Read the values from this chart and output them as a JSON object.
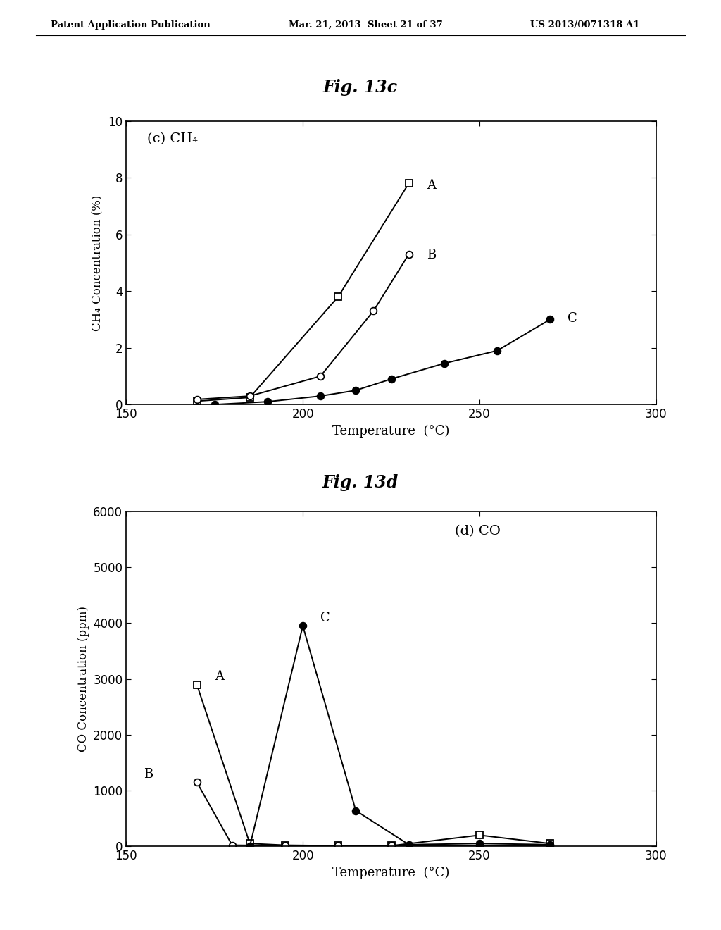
{
  "fig_title_top": "Fig. 13c",
  "fig_title_bottom": "Fig. 13d",
  "header_left": "Patent Application Publication",
  "header_center": "Mar. 21, 2013  Sheet 21 of 37",
  "header_right": "US 2013/0071318 A1",
  "chart_c": {
    "label": "(c) CH₄",
    "xlabel": "Temperature  (°C)",
    "ylabel": "CH₄ Concentration (%)",
    "xlim": [
      150,
      300
    ],
    "ylim": [
      0,
      10
    ],
    "xticks": [
      150,
      200,
      250,
      300
    ],
    "yticks": [
      0,
      2,
      4,
      6,
      8,
      10
    ],
    "series_A": {
      "label": "A",
      "x": [
        170,
        185,
        210,
        230
      ],
      "y": [
        0.12,
        0.25,
        3.8,
        7.8
      ]
    },
    "series_B": {
      "label": "B",
      "x": [
        170,
        185,
        205,
        220,
        230
      ],
      "y": [
        0.18,
        0.3,
        1.0,
        3.3,
        5.3
      ]
    },
    "series_C": {
      "label": "C",
      "x": [
        175,
        190,
        205,
        215,
        225,
        240,
        255,
        270
      ],
      "y": [
        0.0,
        0.1,
        0.3,
        0.5,
        0.9,
        1.45,
        1.9,
        3.0
      ]
    }
  },
  "chart_d": {
    "label": "(d) CO",
    "xlabel": "Temperature  (°C)",
    "ylabel": "CO Concentration (ppm)",
    "xlim": [
      150,
      300
    ],
    "ylim": [
      0,
      6000
    ],
    "xticks": [
      150,
      200,
      250,
      300
    ],
    "yticks": [
      0,
      1000,
      2000,
      3000,
      4000,
      5000,
      6000
    ],
    "series_A": {
      "label": "A",
      "x": [
        170,
        185,
        195,
        210,
        225,
        250,
        270
      ],
      "y": [
        2900,
        50,
        20,
        10,
        10,
        200,
        50
      ]
    },
    "series_B": {
      "label": "B",
      "x": [
        170,
        180,
        195,
        210,
        225,
        250,
        270
      ],
      "y": [
        1150,
        20,
        10,
        10,
        10,
        10,
        10
      ]
    },
    "series_C": {
      "label": "C",
      "x": [
        185,
        200,
        215,
        230,
        250,
        270
      ],
      "y": [
        0,
        3950,
        640,
        30,
        50,
        30
      ]
    }
  },
  "bg_color": "#ffffff",
  "line_color": "#000000",
  "marker_size": 7,
  "linewidth": 1.4,
  "font_family": "DejaVu Serif"
}
